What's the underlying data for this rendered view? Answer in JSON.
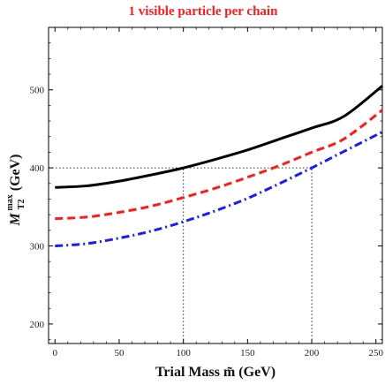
{
  "chart_data": {
    "type": "line",
    "title": "1 visible particle per chain",
    "xlabel": "Trial Mass m̃ (GeV)",
    "ylabel": {
      "main": "M",
      "sup": "max",
      "sub": "T2",
      "unit": " (GeV)"
    },
    "xlim": [
      -5,
      255
    ],
    "ylim": [
      175,
      580
    ],
    "xticks": [
      0,
      50,
      100,
      150,
      200,
      250
    ],
    "yticks": [
      200,
      300,
      400,
      500
    ],
    "grid": false,
    "series": [
      {
        "style": "solid",
        "color": "#000000",
        "x": [
          0,
          25,
          50,
          75,
          100,
          125,
          150,
          175,
          200,
          225,
          255
        ],
        "y": [
          375,
          377,
          383,
          391,
          400,
          411,
          423,
          437,
          451,
          466,
          505
        ]
      },
      {
        "style": "dashed",
        "color": "#ff1a1a",
        "x": [
          0,
          25,
          50,
          75,
          100,
          125,
          150,
          175,
          200,
          225,
          255
        ],
        "y": [
          335,
          337,
          343,
          351,
          362,
          374,
          388,
          403,
          420,
          437,
          474
        ]
      },
      {
        "style": "dashdot",
        "color": "#1a1aff",
        "x": [
          0,
          25,
          50,
          75,
          100,
          125,
          150,
          175,
          200,
          225,
          255
        ],
        "y": [
          300,
          303,
          310,
          319,
          331,
          345,
          361,
          380,
          400,
          421,
          446
        ]
      }
    ],
    "reference_lines": [
      {
        "orientation": "horizontal",
        "y": 400,
        "from_x": -5,
        "to_x": 200
      },
      {
        "orientation": "vertical",
        "x": 100,
        "from_y": 175,
        "to_y": 400
      },
      {
        "orientation": "vertical",
        "x": 200,
        "from_y": 175,
        "to_y": 400
      }
    ]
  }
}
